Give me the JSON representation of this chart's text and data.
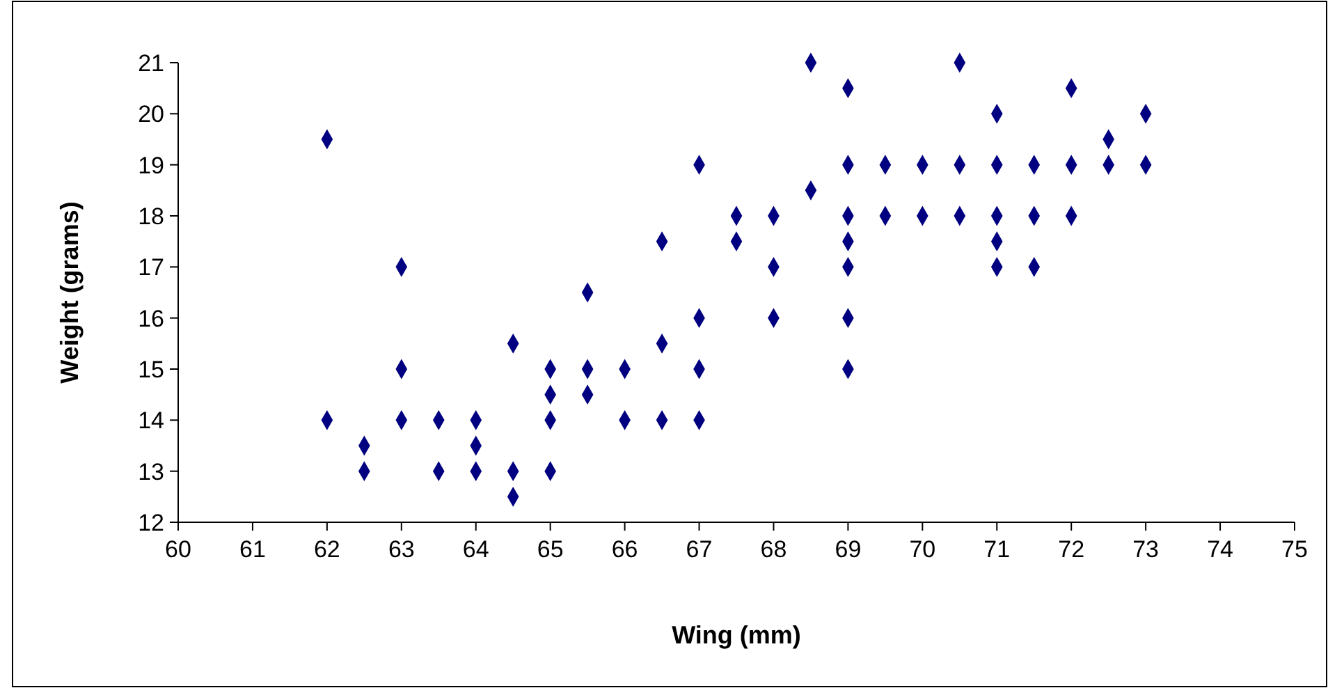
{
  "chart_data": {
    "type": "scatter",
    "xlabel": "Wing (mm)",
    "ylabel": "Weight (grams)",
    "x": [
      62,
      62,
      62.5,
      62.5,
      63,
      63,
      63,
      63.5,
      63.5,
      64,
      64,
      64,
      64.5,
      64.5,
      64.5,
      65,
      65,
      65,
      65,
      65.5,
      65.5,
      65.5,
      66,
      66,
      66.5,
      66.5,
      66.5,
      67,
      67,
      67,
      67,
      67.5,
      67.5,
      68,
      68,
      68,
      68.5,
      68.5,
      69,
      69,
      69,
      69,
      69,
      69,
      69,
      69.5,
      69.5,
      70,
      70,
      70.5,
      70.5,
      70.5,
      71,
      71,
      71,
      71,
      71,
      71.5,
      71.5,
      71.5,
      72,
      72,
      72,
      72.5,
      72.5,
      73,
      73
    ],
    "values": [
      19.5,
      14,
      13.5,
      13,
      17,
      15,
      14,
      14,
      13,
      14,
      13.5,
      13,
      15.5,
      13,
      12.5,
      15,
      14.5,
      14,
      13,
      16.5,
      15,
      14.5,
      15,
      14,
      17.5,
      15.5,
      14,
      19,
      16,
      15,
      14,
      18,
      17.5,
      18,
      17,
      16,
      21,
      18.5,
      20.5,
      19,
      18,
      17.5,
      17,
      16,
      15,
      19,
      18,
      19,
      18,
      21,
      19,
      18,
      20,
      19,
      18,
      17.5,
      17,
      19,
      18,
      17,
      20.5,
      19,
      18,
      19.5,
      19,
      20,
      19
    ],
    "color": "#000080",
    "marker": "diamond",
    "xlim": [
      60,
      75
    ],
    "xticks": [
      60,
      61,
      62,
      63,
      64,
      65,
      66,
      67,
      68,
      69,
      70,
      71,
      72,
      73,
      74,
      75
    ],
    "ylim": [
      12,
      21
    ],
    "yticks": [
      12,
      13,
      14,
      15,
      16,
      17,
      18,
      19,
      20,
      21
    ],
    "grid": false
  }
}
